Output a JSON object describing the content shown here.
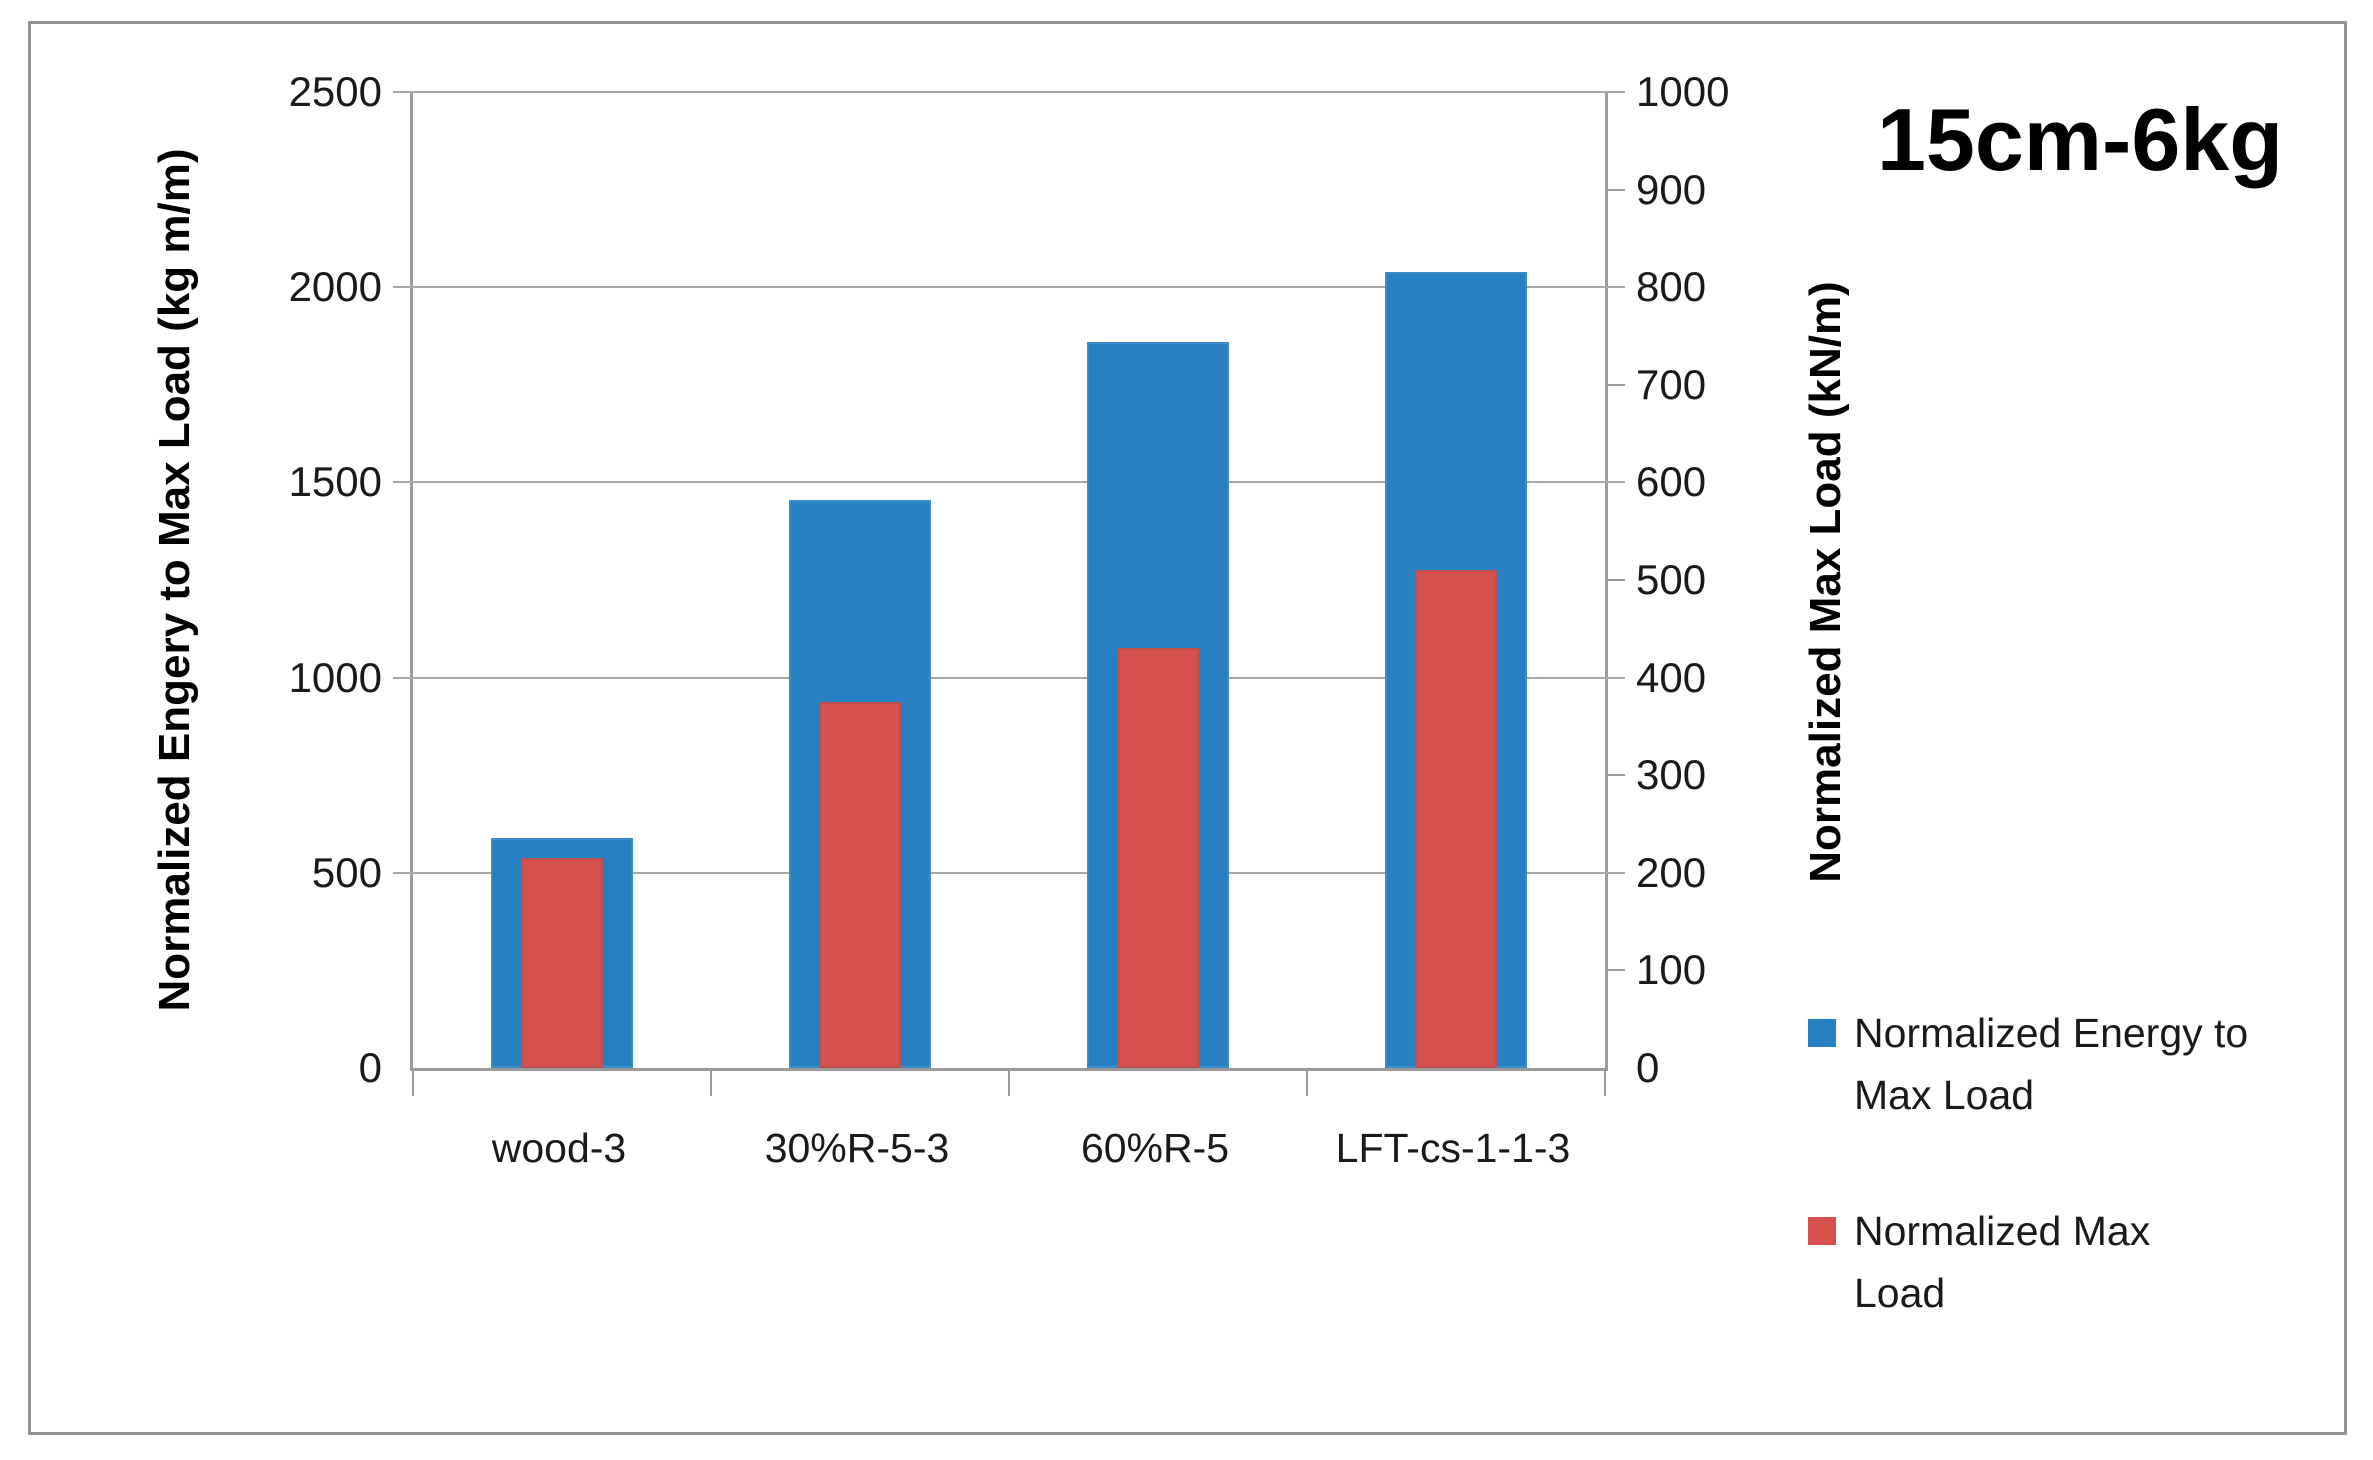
{
  "title": "15cm-6kg",
  "chart_data": {
    "type": "bar",
    "subtype": "overlaid-dual-axis",
    "categories": [
      "wood-3",
      "30%R-5-3",
      "60%R-5",
      "LFT-cs-1-1-3"
    ],
    "series": [
      {
        "name": "Normalized Energy to Max Load",
        "axis": "left",
        "color": "#2680c2",
        "values": [
          590,
          1455,
          1860,
          2040
        ]
      },
      {
        "name": "Normalized Max Load",
        "axis": "right",
        "color": "#d6504d",
        "values": [
          215,
          375,
          430,
          510
        ]
      }
    ],
    "left_axis": {
      "label": "Normalized Engery to Max Load (kg m/m)",
      "min": 0,
      "max": 2500,
      "step": 500,
      "ticks": [
        0,
        500,
        1000,
        1500,
        2000,
        2500
      ]
    },
    "right_axis": {
      "label": "Normalized Max Load (kN/m)",
      "min": 0,
      "max": 1000,
      "step": 100,
      "ticks": [
        0,
        100,
        200,
        300,
        400,
        500,
        600,
        700,
        800,
        900,
        1000
      ]
    },
    "grid": true,
    "legend_position": "right"
  },
  "colors": {
    "gridline": "#a8a8a8",
    "axis_line": "#9a9a9a",
    "frame_border": "#939393",
    "series_blue": "#2680c2",
    "series_red": "#d6504d",
    "text": "#000000"
  }
}
